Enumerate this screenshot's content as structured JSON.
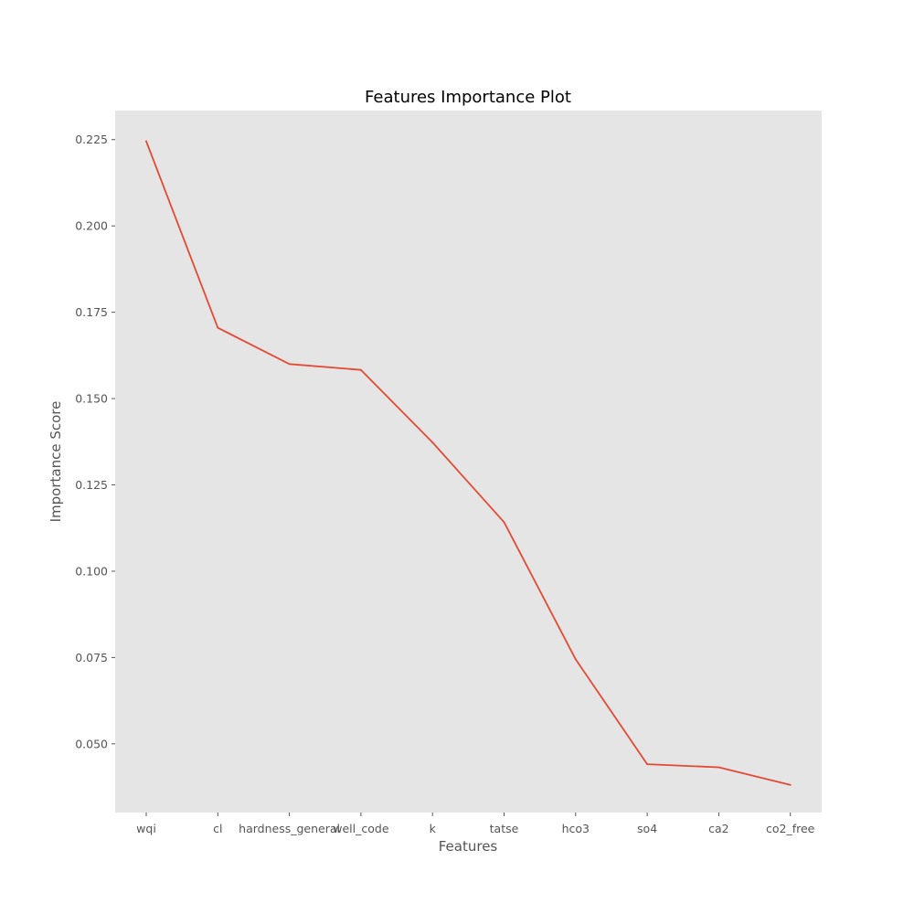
{
  "chart_data": {
    "type": "line",
    "title": "Features Importance Plot",
    "xlabel": "Features",
    "ylabel": "Importance Score",
    "categories": [
      "wqi",
      "cl",
      "hardness_general",
      "well_code",
      "k",
      "tatse",
      "hco3",
      "so4",
      "ca2",
      "co2_free"
    ],
    "series": [
      {
        "values": [
          0.2245,
          0.1705,
          0.16,
          0.1583,
          0.1373,
          0.1142,
          0.0745,
          0.0441,
          0.0432,
          0.0381
        ]
      }
    ],
    "ylim": [
      0.0301,
      0.2334
    ],
    "yticks": [
      "0.050",
      "0.075",
      "0.100",
      "0.125",
      "0.150",
      "0.175",
      "0.200",
      "0.225"
    ],
    "grid": false,
    "legend": "none",
    "colors": {
      "plot_background": "#e5e5e5",
      "line": "#e24a33",
      "tick_text": "#555555",
      "tick_mark": "#555555"
    }
  }
}
